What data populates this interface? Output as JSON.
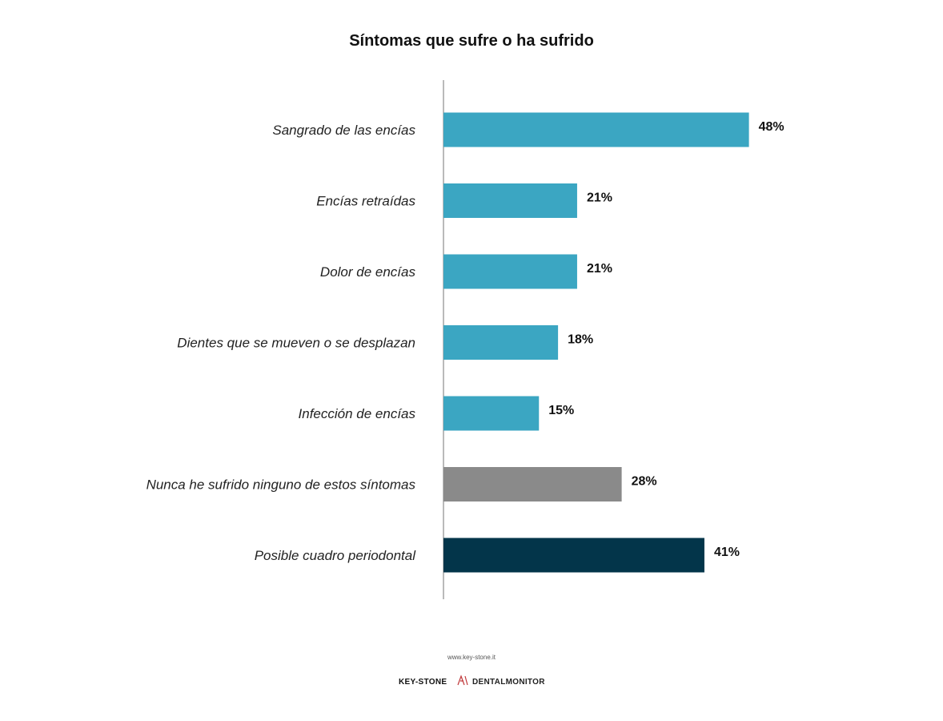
{
  "chart_data": {
    "type": "bar",
    "orientation": "horizontal",
    "title": "Síntomas que sufre o ha sufrido",
    "categories": [
      "Sangrado de las encías",
      "Encías retraídas",
      "Dolor de encías",
      "Dientes que se mueven o se desplazan",
      "Infección de encías",
      "Nunca he sufrido ninguno de estos síntomas",
      "Posible cuadro periodontal"
    ],
    "values": [
      48,
      21,
      21,
      18,
      15,
      28,
      41
    ],
    "value_labels": [
      "48%",
      "21%",
      "21%",
      "18%",
      "15%",
      "28%",
      "41%"
    ],
    "bar_colors": [
      "#3ba6c2",
      "#3ba6c2",
      "#3ba6c2",
      "#3ba6c2",
      "#3ba6c2",
      "#8a8a8a",
      "#03354a"
    ],
    "xlim": [
      0,
      60
    ],
    "grid": false,
    "legend": "none"
  },
  "footer": {
    "url": "www.key-stone.it",
    "logo_left": "KEY-STONE",
    "logo_right": "DENTALMONITOR"
  }
}
